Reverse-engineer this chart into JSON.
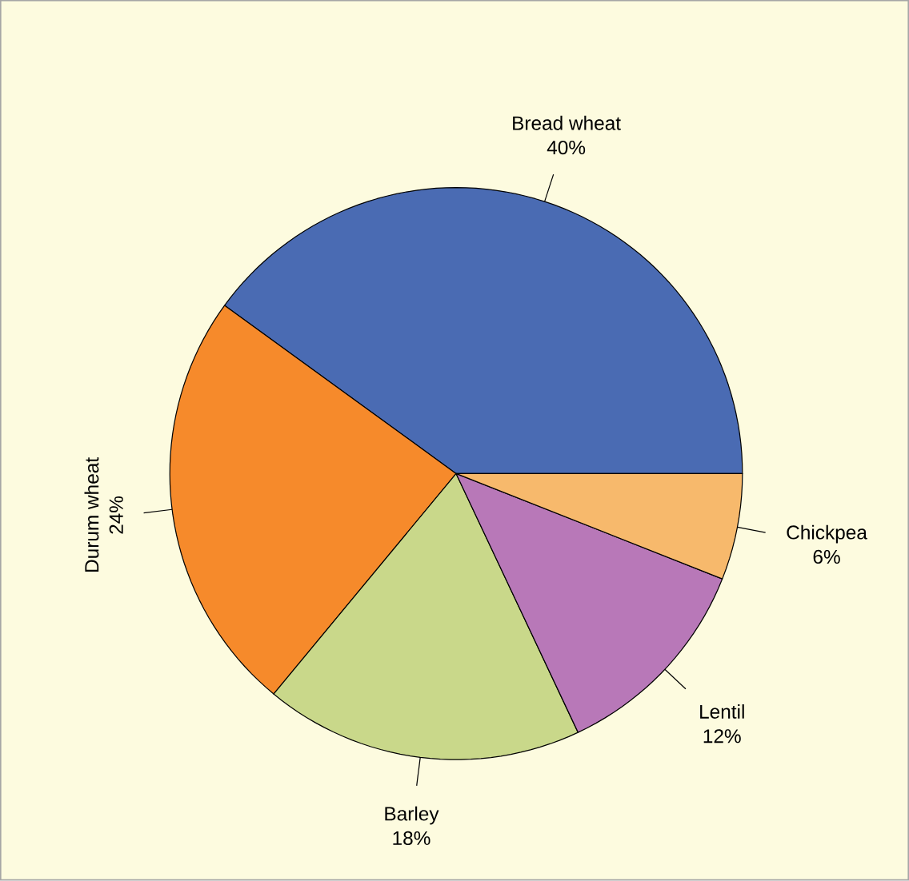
{
  "chart_data": {
    "type": "pie",
    "categories": [
      "Bread wheat",
      "Durum wheat",
      "Barley",
      "Lentil",
      "Chickpea"
    ],
    "values": [
      40,
      24,
      18,
      12,
      6
    ],
    "colors": [
      "#4a6bb3",
      "#f68a2b",
      "#c9d88a",
      "#b878b8",
      "#f7b96c"
    ],
    "value_labels": [
      "40%",
      "24%",
      "18%",
      "12%",
      "6%"
    ]
  }
}
